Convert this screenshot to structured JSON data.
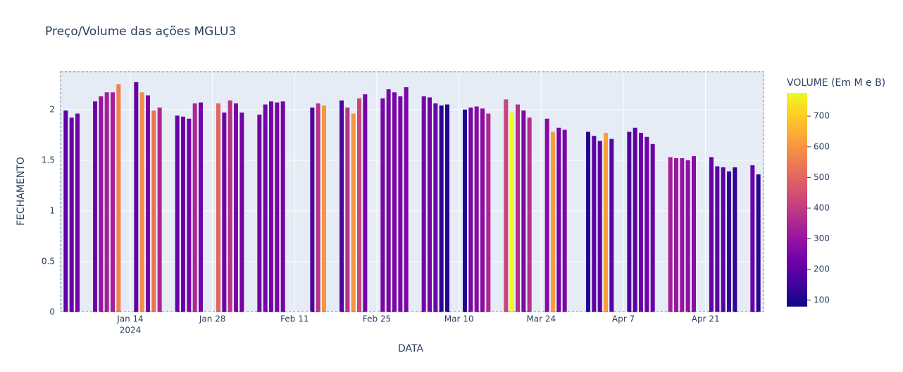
{
  "chart_data": {
    "type": "bar",
    "title": "Preço/Volume das ações MGLU3",
    "x_label": "DATA",
    "y_label": "FECHAMENTO",
    "x": [
      "2024-01-03",
      "2024-01-04",
      "2024-01-05",
      "2024-01-08",
      "2024-01-09",
      "2024-01-10",
      "2024-01-11",
      "2024-01-12",
      "2024-01-15",
      "2024-01-16",
      "2024-01-17",
      "2024-01-18",
      "2024-01-19",
      "2024-01-22",
      "2024-01-23",
      "2024-01-24",
      "2024-01-25",
      "2024-01-26",
      "2024-01-29",
      "2024-01-30",
      "2024-01-31",
      "2024-02-01",
      "2024-02-02",
      "2024-02-05",
      "2024-02-06",
      "2024-02-07",
      "2024-02-08",
      "2024-02-09",
      "2024-02-14",
      "2024-02-15",
      "2024-02-16",
      "2024-02-19",
      "2024-02-20",
      "2024-02-21",
      "2024-02-22",
      "2024-02-23",
      "2024-02-26",
      "2024-02-27",
      "2024-02-28",
      "2024-02-29",
      "2024-03-01",
      "2024-03-04",
      "2024-03-05",
      "2024-03-06",
      "2024-03-07",
      "2024-03-08",
      "2024-03-11",
      "2024-03-12",
      "2024-03-13",
      "2024-03-14",
      "2024-03-15",
      "2024-03-18",
      "2024-03-19",
      "2024-03-20",
      "2024-03-21",
      "2024-03-22",
      "2024-03-25",
      "2024-03-26",
      "2024-03-27",
      "2024-03-28",
      "2024-04-01",
      "2024-04-02",
      "2024-04-03",
      "2024-04-04",
      "2024-04-05",
      "2024-04-08",
      "2024-04-09",
      "2024-04-10",
      "2024-04-11",
      "2024-04-12",
      "2024-04-15",
      "2024-04-16",
      "2024-04-17",
      "2024-04-18",
      "2024-04-19",
      "2024-04-22",
      "2024-04-23",
      "2024-04-24",
      "2024-04-25",
      "2024-04-26",
      "2024-04-29",
      "2024-04-30"
    ],
    "values": [
      1.99,
      1.92,
      1.96,
      2.08,
      2.13,
      2.17,
      2.17,
      2.25,
      2.27,
      2.17,
      2.14,
      1.99,
      2.02,
      1.94,
      1.93,
      1.91,
      2.06,
      2.07,
      2.06,
      1.97,
      2.09,
      2.06,
      1.97,
      1.95,
      2.05,
      2.08,
      2.07,
      2.08,
      2.02,
      2.06,
      2.04,
      2.09,
      2.02,
      1.96,
      2.11,
      2.15,
      2.11,
      2.2,
      2.17,
      2.13,
      2.22,
      2.13,
      2.12,
      2.06,
      2.04,
      2.05,
      2.0,
      2.02,
      2.03,
      2.01,
      1.96,
      2.1,
      1.97,
      2.05,
      1.99,
      1.92,
      1.91,
      1.78,
      1.82,
      1.8,
      1.78,
      1.74,
      1.69,
      1.77,
      1.71,
      1.78,
      1.82,
      1.77,
      1.73,
      1.66,
      1.53,
      1.52,
      1.52,
      1.5,
      1.54,
      1.53,
      1.44,
      1.43,
      1.39,
      1.43,
      1.45,
      1.36
    ],
    "volume": [
      200,
      220,
      240,
      230,
      300,
      330,
      330,
      560,
      210,
      580,
      240,
      530,
      350,
      220,
      220,
      240,
      350,
      240,
      500,
      230,
      380,
      250,
      240,
      240,
      240,
      240,
      240,
      240,
      180,
      380,
      600,
      180,
      380,
      600,
      430,
      240,
      250,
      250,
      250,
      250,
      250,
      240,
      240,
      230,
      120,
      110,
      110,
      250,
      270,
      280,
      350,
      420,
      780,
      370,
      260,
      370,
      270,
      620,
      240,
      250,
      110,
      200,
      190,
      620,
      200,
      170,
      200,
      230,
      230,
      220,
      330,
      310,
      300,
      290,
      280,
      210,
      200,
      190,
      130,
      130,
      220,
      120
    ],
    "xlim": [
      "2024-01-02",
      "2024-05-01"
    ],
    "xticks": [
      {
        "value": "2024-01-14",
        "label": "Jan 14"
      },
      {
        "value": "2024-01-28",
        "label": "Jan 28"
      },
      {
        "value": "2024-02-11",
        "label": "Feb 11"
      },
      {
        "value": "2024-02-25",
        "label": "Feb 25"
      },
      {
        "value": "2024-03-10",
        "label": "Mar 10"
      },
      {
        "value": "2024-03-24",
        "label": "Mar 24"
      },
      {
        "value": "2024-04-07",
        "label": "Apr 7"
      },
      {
        "value": "2024-04-21",
        "label": "Apr 21"
      }
    ],
    "x_year_label": "2024",
    "ylim": [
      0,
      2.38
    ],
    "yticks": [
      0,
      0.5,
      1,
      1.5,
      2
    ],
    "grid": true,
    "colorbar": {
      "title": "VOLUME (Em M e B)",
      "range": [
        79,
        776
      ],
      "ticks": [
        100,
        200,
        300,
        400,
        500,
        600,
        700
      ],
      "colorscale": [
        "#0d0887",
        "#46039f",
        "#7201a8",
        "#9c179e",
        "#bd3786",
        "#d8576b",
        "#ed7953",
        "#fb9f3a",
        "#fdca26",
        "#f0f921"
      ]
    }
  }
}
